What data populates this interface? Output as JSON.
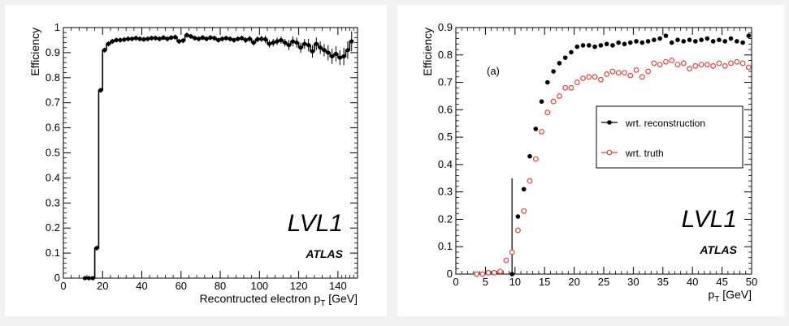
{
  "chart_data": [
    {
      "type": "scatter",
      "xlabel": "Recontructed electron p",
      "xlabel_sub": "T",
      "xlabel_unit": " [GeV]",
      "ylabel": "Efficiency",
      "xlim": [
        0,
        150
      ],
      "ylim": [
        0,
        1.0
      ],
      "x_ticks": [
        0,
        20,
        40,
        60,
        80,
        100,
        120,
        140
      ],
      "y_ticks": [
        0,
        0.1,
        0.2,
        0.3,
        0.4,
        0.5,
        0.6,
        0.7,
        0.8,
        0.9,
        1
      ],
      "y_tick_labels": [
        "0",
        "0.1",
        "0.2",
        "0.3",
        "0.4",
        "0.5",
        "0.6",
        "0.7",
        "0.8",
        "0.9",
        "1"
      ],
      "annotation_main": "LVL1",
      "annotation_sub": "ATLAS",
      "style": "step-with-markers",
      "series": [
        {
          "x": [
            11,
            13,
            15,
            17,
            19,
            21,
            23,
            25,
            27,
            29,
            31,
            33,
            35,
            37,
            39,
            41,
            43,
            45,
            47,
            49,
            51,
            53,
            55,
            57,
            59,
            61,
            63,
            65,
            67,
            69,
            71,
            73,
            75,
            77,
            79,
            81,
            83,
            85,
            87,
            89,
            91,
            93,
            95,
            97,
            99,
            101,
            103,
            105,
            107,
            109,
            111,
            113,
            115,
            117,
            119,
            121,
            123,
            125,
            127,
            129,
            131,
            133,
            135,
            137,
            139,
            141,
            143,
            145,
            147
          ],
          "values": [
            0.0,
            0.0,
            0.0,
            0.12,
            0.75,
            0.91,
            0.935,
            0.945,
            0.95,
            0.95,
            0.952,
            0.955,
            0.955,
            0.958,
            0.955,
            0.953,
            0.955,
            0.958,
            0.958,
            0.955,
            0.96,
            0.955,
            0.96,
            0.962,
            0.945,
            0.948,
            0.97,
            0.965,
            0.958,
            0.955,
            0.96,
            0.955,
            0.96,
            0.958,
            0.95,
            0.955,
            0.958,
            0.955,
            0.95,
            0.955,
            0.958,
            0.95,
            0.955,
            0.94,
            0.953,
            0.955,
            0.953,
            0.935,
            0.94,
            0.945,
            0.95,
            0.94,
            0.93,
            0.945,
            0.94,
            0.92,
            0.935,
            0.93,
            0.905,
            0.935,
            0.92,
            0.91,
            0.9,
            0.885,
            0.895,
            0.88,
            0.885,
            0.91,
            0.945
          ],
          "errors": [
            0.0,
            0.0,
            0.0,
            0.01,
            0.01,
            0.01,
            0.01,
            0.01,
            0.01,
            0.01,
            0.01,
            0.01,
            0.01,
            0.01,
            0.01,
            0.01,
            0.01,
            0.01,
            0.01,
            0.01,
            0.01,
            0.01,
            0.01,
            0.01,
            0.01,
            0.01,
            0.01,
            0.01,
            0.01,
            0.01,
            0.01,
            0.01,
            0.01,
            0.01,
            0.01,
            0.01,
            0.01,
            0.01,
            0.01,
            0.01,
            0.01,
            0.012,
            0.012,
            0.012,
            0.012,
            0.012,
            0.015,
            0.015,
            0.015,
            0.015,
            0.015,
            0.015,
            0.02,
            0.02,
            0.02,
            0.02,
            0.02,
            0.025,
            0.025,
            0.025,
            0.025,
            0.025,
            0.03,
            0.03,
            0.03,
            0.03,
            0.035,
            0.035,
            0.04
          ],
          "color": "#000000"
        }
      ]
    },
    {
      "type": "scatter",
      "xlabel": "p",
      "xlabel_sub": "T",
      "xlabel_unit": " [GeV]",
      "ylabel": "Efficiency",
      "xlim": [
        0,
        50
      ],
      "ylim": [
        0,
        0.9
      ],
      "x_ticks": [
        0,
        5,
        10,
        15,
        20,
        25,
        30,
        35,
        40,
        45,
        50
      ],
      "y_ticks": [
        0,
        0.1,
        0.2,
        0.3,
        0.4,
        0.5,
        0.6,
        0.7,
        0.8,
        0.9
      ],
      "y_tick_labels": [
        "0",
        "0.1",
        "0.2",
        "0.3",
        "0.4",
        "0.5",
        "0.6",
        "0.7",
        "0.8",
        "0.9"
      ],
      "panel_label": "(a)",
      "annotation_main": "LVL1",
      "annotation_sub": "ATLAS",
      "threshold_line": {
        "x": 9.5,
        "y_top": 0.35
      },
      "legend_position": "right-middle",
      "series": [
        {
          "name": "wrt. reconstruction",
          "color": "#000000",
          "marker": "filled-circle",
          "x": [
            9.5,
            10.5,
            11.5,
            12.5,
            13.5,
            14.5,
            15.5,
            16.5,
            17.5,
            18.5,
            19.5,
            20.5,
            21.5,
            22.5,
            23.5,
            24.5,
            25.5,
            26.5,
            27.5,
            28.5,
            29.5,
            30.5,
            31.5,
            32.5,
            33.5,
            34.5,
            35.5,
            36.5,
            37.5,
            38.5,
            39.5,
            40.5,
            41.5,
            42.5,
            43.5,
            44.5,
            45.5,
            46.5,
            47.5,
            48.5,
            49.5
          ],
          "values": [
            0.0,
            0.21,
            0.31,
            0.43,
            0.53,
            0.63,
            0.7,
            0.74,
            0.77,
            0.79,
            0.81,
            0.83,
            0.835,
            0.835,
            0.83,
            0.835,
            0.84,
            0.835,
            0.845,
            0.84,
            0.845,
            0.85,
            0.845,
            0.85,
            0.855,
            0.86,
            0.87,
            0.845,
            0.855,
            0.85,
            0.855,
            0.85,
            0.855,
            0.86,
            0.85,
            0.855,
            0.85,
            0.86,
            0.85,
            0.845,
            0.87
          ]
        },
        {
          "name": "wrt. truth",
          "color": "#e0473e",
          "marker": "open-circle",
          "x": [
            3.5,
            4.5,
            5.5,
            6.5,
            7.5,
            8.5,
            9.5,
            10.5,
            11.5,
            12.5,
            13.5,
            14.5,
            15.5,
            16.5,
            17.5,
            18.5,
            19.5,
            20.5,
            21.5,
            22.5,
            23.5,
            24.5,
            25.5,
            26.5,
            27.5,
            28.5,
            29.5,
            30.5,
            31.5,
            32.5,
            33.5,
            34.5,
            35.5,
            36.5,
            37.5,
            38.5,
            39.5,
            40.5,
            41.5,
            42.5,
            43.5,
            44.5,
            45.5,
            46.5,
            47.5,
            48.5,
            49.5
          ],
          "values": [
            0.0,
            0.0,
            0.005,
            0.005,
            0.01,
            0.05,
            0.08,
            0.16,
            0.23,
            0.34,
            0.42,
            0.52,
            0.59,
            0.63,
            0.65,
            0.68,
            0.68,
            0.7,
            0.715,
            0.72,
            0.72,
            0.71,
            0.73,
            0.74,
            0.735,
            0.735,
            0.725,
            0.745,
            0.72,
            0.74,
            0.77,
            0.765,
            0.775,
            0.78,
            0.765,
            0.77,
            0.75,
            0.76,
            0.765,
            0.765,
            0.76,
            0.77,
            0.76,
            0.77,
            0.775,
            0.77,
            0.755
          ]
        }
      ]
    }
  ]
}
